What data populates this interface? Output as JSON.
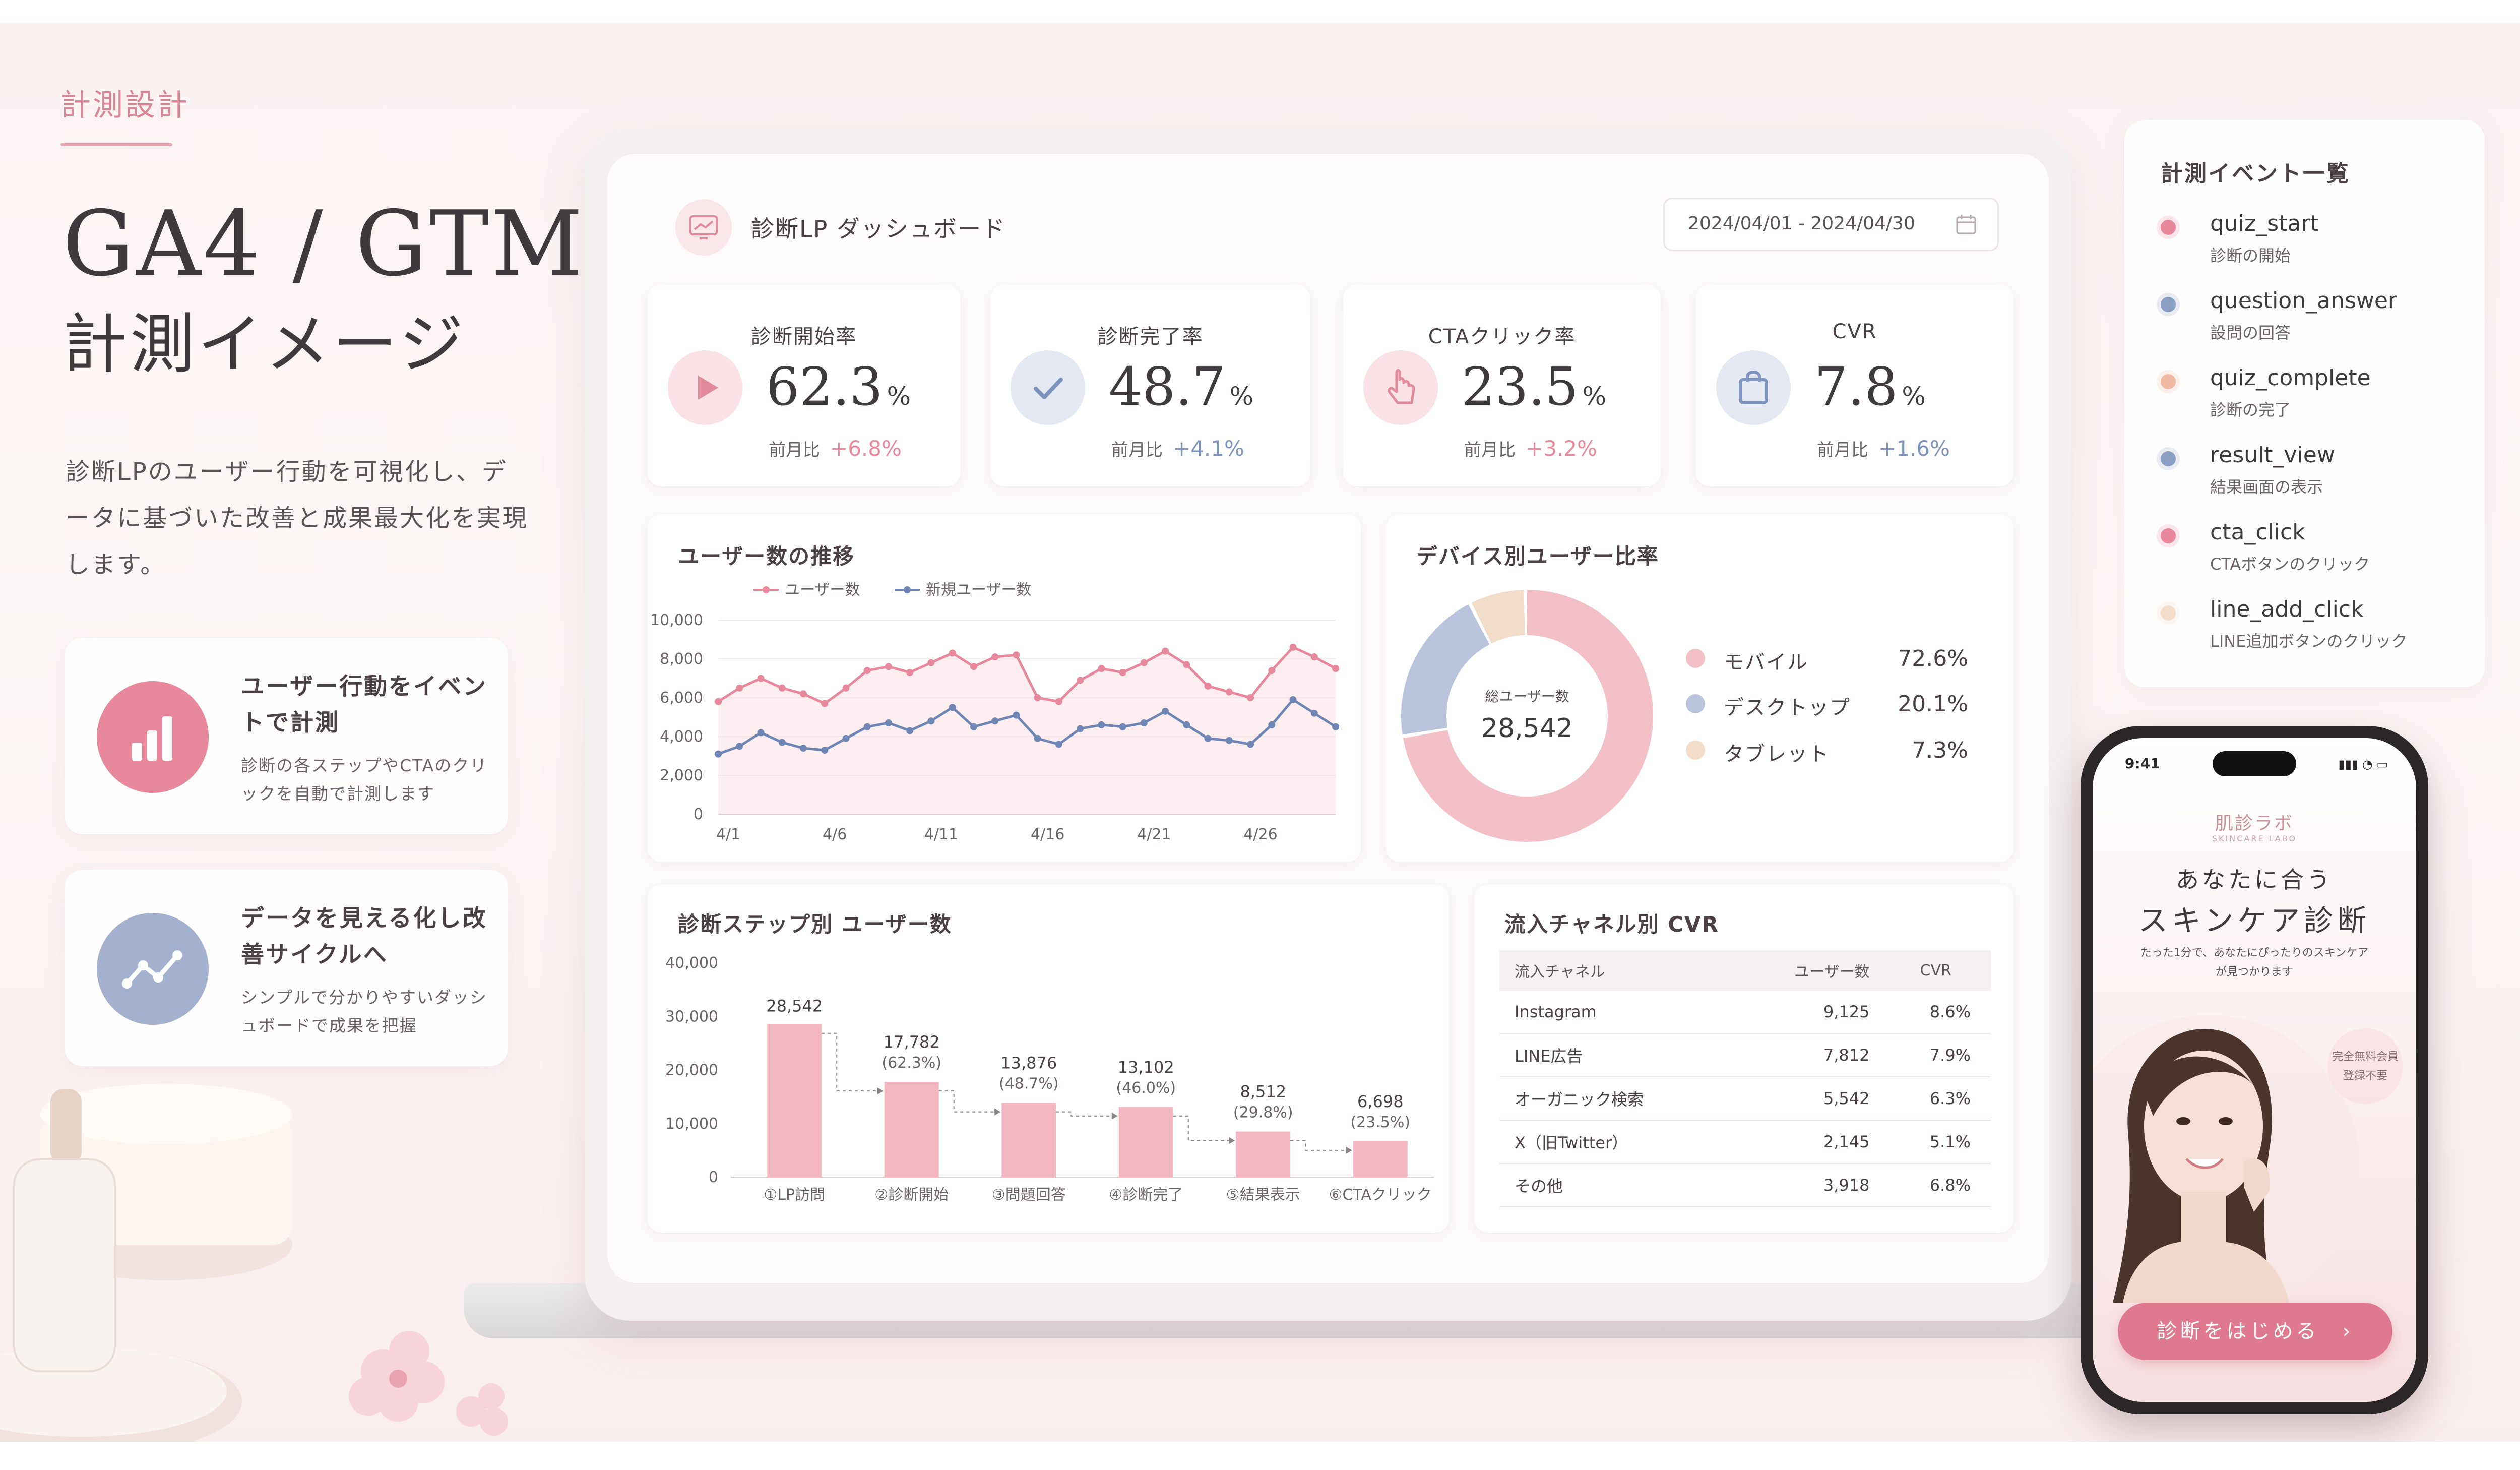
{
  "hero": {
    "eyebrow": "計測設計",
    "title": "GA4 / GTM",
    "subtitle": "計測イメージ",
    "description": "診断LPのユーザー行動を可視化し、データに基づいた改善と成果最大化を実現します。"
  },
  "features": [
    {
      "title": "ユーザー行動をイベントで計測",
      "text": "診断の各ステップやCTAのクリックを自動で計測します",
      "icon": "bar-chart-icon"
    },
    {
      "title": "データを見える化し改善サイクルへ",
      "text": "シンプルで分かりやすいダッシュボードで成果を把握",
      "icon": "trend-line-icon"
    }
  ],
  "dashboard": {
    "title": "診断LP ダッシュボード",
    "date_range": "2024/04/01 - 2024/04/30",
    "kpis": [
      {
        "label": "診断開始率",
        "value": "62.3",
        "unit": "%",
        "compare_label": "前月比",
        "delta": "+6.8%",
        "icon": "play-icon",
        "color": "#e8889c"
      },
      {
        "label": "診断完了率",
        "value": "48.7",
        "unit": "%",
        "compare_label": "前月比",
        "delta": "+4.1%",
        "icon": "check-icon",
        "color": "#8b9ec4"
      },
      {
        "label": "CTAクリック率",
        "value": "23.5",
        "unit": "%",
        "compare_label": "前月比",
        "delta": "+3.2%",
        "icon": "pointer-icon",
        "color": "#e8889c"
      },
      {
        "label": "CVR",
        "value": "7.8",
        "unit": "%",
        "compare_label": "前月比",
        "delta": "+1.6%",
        "icon": "shopping-bag-icon",
        "color": "#8b9ec4"
      }
    ],
    "donut_center_label": "総ユーザー数",
    "donut_center_value": "28,542",
    "channel_table": {
      "title": "流入チャネル別 CVR",
      "headers": [
        "流入チャネル",
        "ユーザー数",
        "CVR"
      ],
      "rows": [
        [
          "Instagram",
          "9,125",
          "8.6%"
        ],
        [
          "LINE広告",
          "7,812",
          "7.9%"
        ],
        [
          "オーガニック検索",
          "5,542",
          "6.3%"
        ],
        [
          "X（旧Twitter）",
          "2,145",
          "5.1%"
        ],
        [
          "その他",
          "3,918",
          "6.8%"
        ]
      ]
    }
  },
  "chart_data": [
    {
      "type": "line",
      "title": "ユーザー数の推移",
      "x": [
        "4/1",
        "4/2",
        "4/3",
        "4/4",
        "4/5",
        "4/6",
        "4/7",
        "4/8",
        "4/9",
        "4/10",
        "4/11",
        "4/12",
        "4/13",
        "4/14",
        "4/15",
        "4/16",
        "4/17",
        "4/18",
        "4/19",
        "4/20",
        "4/21",
        "4/22",
        "4/23",
        "4/24",
        "4/25",
        "4/26",
        "4/27",
        "4/28",
        "4/29",
        "4/30"
      ],
      "x_tick_labels": [
        "4/1",
        "4/6",
        "4/11",
        "4/16",
        "4/21",
        "4/26"
      ],
      "series": [
        {
          "name": "ユーザー数",
          "color": "#e8889c",
          "values": [
            5800,
            6500,
            7000,
            6500,
            6200,
            5700,
            6500,
            7400,
            7600,
            7300,
            7800,
            8300,
            7600,
            8100,
            8200,
            6000,
            5800,
            6900,
            7500,
            7300,
            7800,
            8400,
            7700,
            6600,
            6300,
            6000,
            7400,
            8600,
            8100,
            7500
          ]
        },
        {
          "name": "新規ユーザー数",
          "color": "#6f86b4",
          "values": [
            3100,
            3500,
            4200,
            3700,
            3400,
            3300,
            3900,
            4500,
            4700,
            4300,
            4800,
            5500,
            4500,
            4800,
            5100,
            3900,
            3600,
            4400,
            4600,
            4500,
            4700,
            5300,
            4600,
            3900,
            3800,
            3600,
            4600,
            5900,
            5200,
            4500
          ]
        }
      ],
      "ylim": [
        0,
        10000
      ],
      "y_ticks": [
        "0",
        "2,000",
        "4,000",
        "6,000",
        "8,000",
        "10,000"
      ],
      "legend": "top-left"
    },
    {
      "type": "pie",
      "title": "デバイス別ユーザー比率",
      "labels": [
        "モバイル",
        "デスクトップ",
        "タブレット"
      ],
      "values": [
        72.6,
        20.1,
        7.3
      ],
      "value_labels": [
        "72.6%",
        "20.1%",
        "7.3%"
      ],
      "colors": [
        "#f3c0c8",
        "#b9c4dc",
        "#f2ddca"
      ],
      "legend": "right"
    },
    {
      "type": "bar",
      "title": "診断ステップ別 ユーザー数",
      "categories": [
        "①LP訪問",
        "②診断開始",
        "③問題回答",
        "④診断完了",
        "⑤結果表示",
        "⑥CTAクリック"
      ],
      "values": [
        28542,
        17782,
        13876,
        13102,
        8512,
        6698
      ],
      "value_labels": [
        "28,542",
        "17,782",
        "13,876",
        "13,102",
        "8,512",
        "6,698"
      ],
      "percent_labels": [
        "",
        "(62.3%)",
        "(48.7%)",
        "(46.0%)",
        "(29.8%)",
        "(23.5%)"
      ],
      "ylim": [
        0,
        40000
      ],
      "y_ticks": [
        "0",
        "10,000",
        "20,000",
        "30,000",
        "40,000"
      ],
      "color": "#f3b7c2"
    }
  ],
  "events": {
    "title": "計測イベント一覧",
    "items": [
      {
        "name": "quiz_start",
        "desc": "診断の開始",
        "color": "#e8889c"
      },
      {
        "name": "question_answer",
        "desc": "設問の回答",
        "color": "#8b9ec4"
      },
      {
        "name": "quiz_complete",
        "desc": "診断の完了",
        "color": "#f0b9a4"
      },
      {
        "name": "result_view",
        "desc": "結果画面の表示",
        "color": "#8b9ec4"
      },
      {
        "name": "cta_click",
        "desc": "CTAボタンのクリック",
        "color": "#e8889c"
      },
      {
        "name": "line_add_click",
        "desc": "LINE追加ボタンのクリック",
        "color": "#f2ddca"
      }
    ]
  },
  "phone": {
    "time": "9:41",
    "brand": "肌診ラボ",
    "brand_sub": "SKINCARE LABO",
    "headline1": "あなたに合う",
    "headline2": "スキンケア診断",
    "copy": "たった1分で、あなたにぴったりのスキンケアが見つかります",
    "badge": "完全無料会員登録不要",
    "cta": "診断をはじめる　›"
  }
}
